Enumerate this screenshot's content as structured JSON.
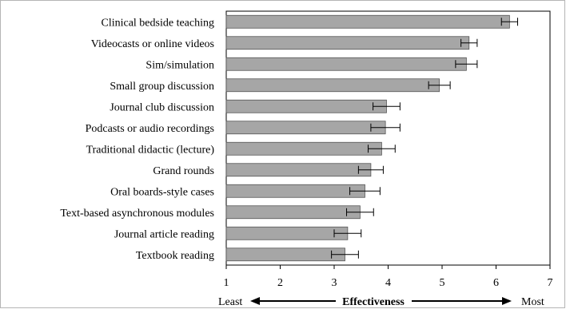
{
  "chart_data": {
    "type": "bar",
    "orientation": "horizontal",
    "categories": [
      "Clinical bedside teaching",
      "Videocasts or online videos",
      "Sim/simulation",
      "Small group discussion",
      "Journal club discussion",
      "Podcasts or audio recordings",
      "Traditional didactic (lecture)",
      "Grand rounds",
      "Oral boards-style cases",
      "Text-based asynchronous modules",
      "Journal article reading",
      "Textbook reading"
    ],
    "values": [
      6.25,
      5.5,
      5.45,
      4.95,
      3.97,
      3.95,
      3.88,
      3.68,
      3.57,
      3.48,
      3.25,
      3.2
    ],
    "error": [
      0.15,
      0.15,
      0.2,
      0.2,
      0.25,
      0.27,
      0.25,
      0.23,
      0.28,
      0.25,
      0.25,
      0.25
    ],
    "bar_color": "#a6a6a6",
    "xlim": [
      1,
      7
    ],
    "xticks": [
      1,
      2,
      3,
      4,
      5,
      6,
      7
    ],
    "xlabel": "Effectiveness",
    "x_left_label": "Least",
    "x_right_label": "Most",
    "grid": false,
    "legend": "none"
  }
}
